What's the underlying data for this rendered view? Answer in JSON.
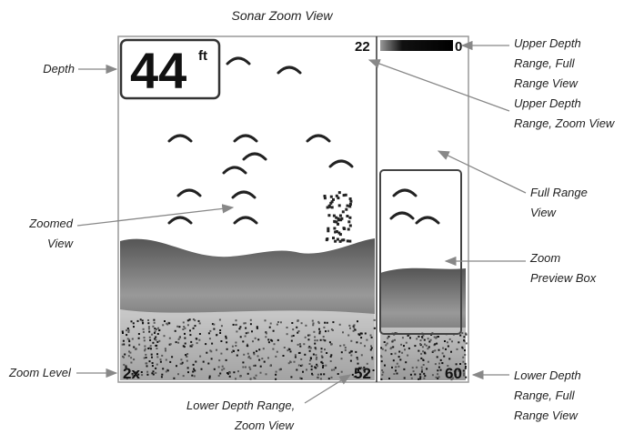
{
  "title": "Sonar Zoom View",
  "screen": {
    "depth": "44",
    "depth_unit": "ft",
    "upper_zoom": "22",
    "upper_full": "0",
    "zoom_level": "2x",
    "lower_zoom": "52",
    "lower_full": "60"
  },
  "callouts": {
    "depth": [
      "Depth"
    ],
    "upper_full": [
      "Upper Depth",
      "Range, Full",
      "Range View"
    ],
    "upper_zoom": [
      "Upper Depth",
      "Range, Zoom View"
    ],
    "full_range": [
      "Full Range",
      "View"
    ],
    "zoomed": [
      "Zoomed",
      "View"
    ],
    "preview": [
      "Zoom",
      "Preview Box"
    ],
    "zoom_level": [
      "Zoom Level"
    ],
    "lower_zoom": [
      "Lower Depth Range,",
      "Zoom View"
    ],
    "lower_full": [
      "Lower Depth",
      "Range, Full",
      "Range View"
    ]
  }
}
